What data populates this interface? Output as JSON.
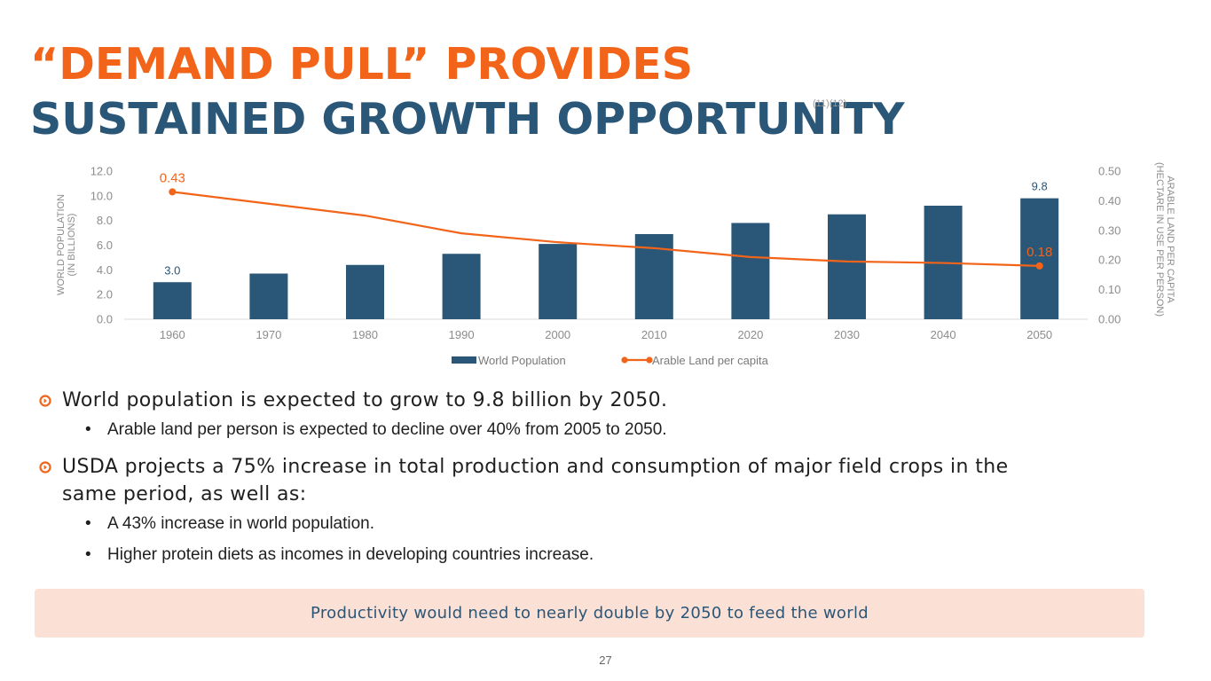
{
  "title": {
    "line1": "“DEMAND PULL” PROVIDES",
    "line2": "SUSTAINED GROWTH OPPORTUNITY",
    "footnote": "(11)(12)"
  },
  "colors": {
    "accent": "#f26419",
    "navy": "#2a5677",
    "callout_bg": "#fbe0d6"
  },
  "chart_data": {
    "type": "bar",
    "categories": [
      "1960",
      "1970",
      "1980",
      "1990",
      "2000",
      "2010",
      "2020",
      "2030",
      "2040",
      "2050"
    ],
    "series": [
      {
        "name": "World Population",
        "type": "bar",
        "axis": "left",
        "color": "#2a5677",
        "values": [
          3.0,
          3.7,
          4.4,
          5.3,
          6.1,
          6.9,
          7.8,
          8.5,
          9.2,
          9.8
        ],
        "labels_shown": [
          {
            "index": 0,
            "text": "3.0"
          },
          {
            "index": 9,
            "text": "9.8"
          }
        ]
      },
      {
        "name": "Arable Land per capita",
        "type": "line",
        "axis": "right",
        "color": "#f26419",
        "values": [
          0.43,
          0.39,
          0.35,
          0.29,
          0.26,
          0.24,
          0.21,
          0.195,
          0.19,
          0.18
        ],
        "labels_shown": [
          {
            "index": 0,
            "text": "0.43"
          },
          {
            "index": 9,
            "text": "0.18"
          }
        ]
      }
    ],
    "ylabel": "WORLD POPULATION (IN BILLIONS)",
    "ylabel_lines": [
      "WORLD POPULATION",
      "(IN BILLIONS)"
    ],
    "ylim": [
      0,
      12
    ],
    "yticks": [
      "0.0",
      "2.0",
      "4.0",
      "6.0",
      "8.0",
      "10.0",
      "12.0"
    ],
    "y2label": "ARABLE LAND PER CAPITA (HECTARE IN USE PER PERSON)",
    "y2label_lines": [
      "ARABLE LAND PER CAPITA",
      "(HECTARE IN USE PER PERSON)"
    ],
    "y2lim": [
      0,
      0.5
    ],
    "y2ticks": [
      "0.00",
      "0.10",
      "0.20",
      "0.30",
      "0.40",
      "0.50"
    ],
    "grid": false,
    "legend": "bottom"
  },
  "bullets": [
    {
      "text": "World population is expected to grow to 9.8 billion by 2050.",
      "sub": [
        "Arable land per person is expected to decline over 40% from 2005 to 2050."
      ]
    },
    {
      "text": "USDA projects a 75% increase in total production and consumption of major field crops in the same period, as well as:",
      "sub": [
        "A 43% increase in world population.",
        "Higher protein diets as incomes in developing countries increase."
      ]
    }
  ],
  "callout": "Productivity would need to nearly double by 2050 to feed the world",
  "page_number": "27"
}
